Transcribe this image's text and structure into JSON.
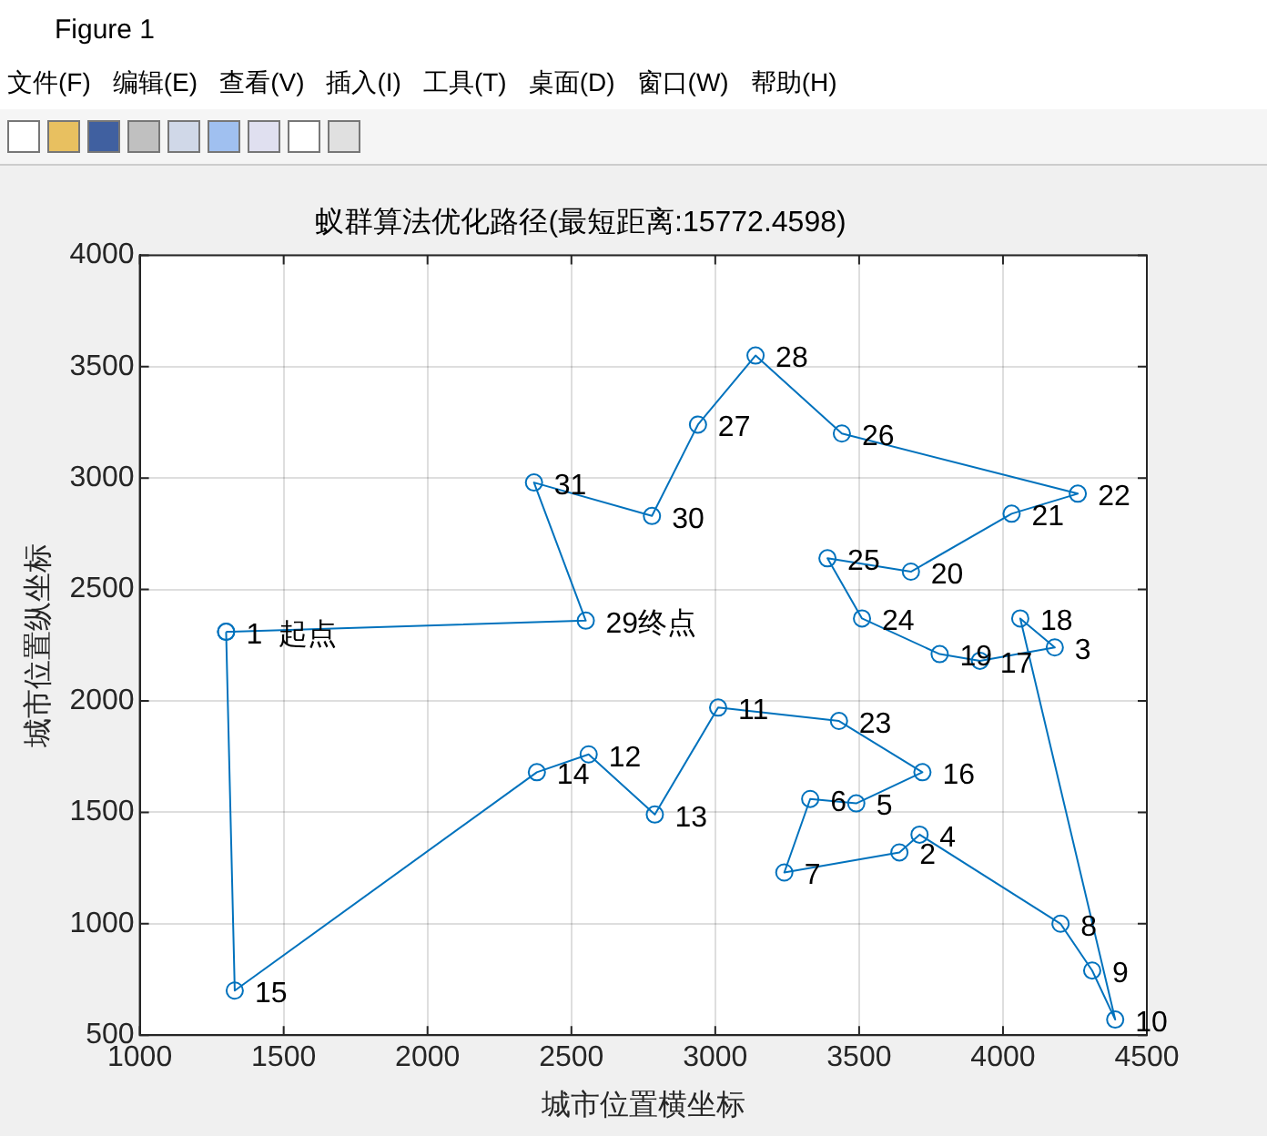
{
  "chart_data": {
    "type": "scatter",
    "title": "蚁群算法优化路径(最短距离:15772.4598)",
    "xlabel": "城市位置横坐标",
    "ylabel": "城市位置纵坐标",
    "annotations": [
      "Figure 1",
      "文件(F)",
      "编辑(E)",
      "查看(V)",
      "插入(I)",
      "工具(T)",
      "桌面(D)",
      "窗口(W)",
      "帮助(H)",
      {
        "text": "1  起点",
        "x": 1300,
        "y": 2310
      },
      {
        "text": "2",
        "x": 3640,
        "y": 1320
      },
      {
        "text": "3",
        "x": 4180,
        "y": 2240
      },
      {
        "text": "4",
        "x": 3710,
        "y": 1400
      },
      {
        "text": "5",
        "x": 3490,
        "y": 1540
      },
      {
        "text": "6",
        "x": 3330,
        "y": 1560
      },
      {
        "text": "7",
        "x": 3240,
        "y": 1230
      },
      {
        "text": "8",
        "x": 4200,
        "y": 1000
      },
      {
        "text": "9",
        "x": 4310,
        "y": 790
      },
      {
        "text": "10",
        "x": 4390,
        "y": 570
      },
      {
        "text": "11",
        "x": 3010,
        "y": 1970
      },
      {
        "text": "12",
        "x": 2560,
        "y": 1760
      },
      {
        "text": "13",
        "x": 2790,
        "y": 1490
      },
      {
        "text": "14",
        "x": 2380,
        "y": 1680
      },
      {
        "text": "15",
        "x": 1330,
        "y": 700
      },
      {
        "text": "16",
        "x": 3720,
        "y": 1680
      },
      {
        "text": "17",
        "x": 3920,
        "y": 2180
      },
      {
        "text": "18",
        "x": 4060,
        "y": 2370
      },
      {
        "text": "19",
        "x": 3780,
        "y": 2210
      },
      {
        "text": "20",
        "x": 3680,
        "y": 2580
      },
      {
        "text": "21",
        "x": 4030,
        "y": 2840
      },
      {
        "text": "22",
        "x": 4260,
        "y": 2930
      },
      {
        "text": "23",
        "x": 3430,
        "y": 1910
      },
      {
        "text": "24",
        "x": 3510,
        "y": 2370
      },
      {
        "text": "25",
        "x": 3390,
        "y": 2640
      },
      {
        "text": "26",
        "x": 3440,
        "y": 3200
      },
      {
        "text": "27",
        "x": 2940,
        "y": 3240
      },
      {
        "text": "28",
        "x": 3140,
        "y": 3550
      },
      {
        "text": "29终点",
        "x": 2550,
        "y": 2360
      },
      {
        "text": "30",
        "x": 2780,
        "y": 2830
      },
      {
        "text": "31",
        "x": 2370,
        "y": 2980
      }
    ],
    "series": [
      {
        "color": "#0072bd",
        "x": [
          1300,
          1330,
          2380,
          2560,
          2790,
          3010,
          3430,
          3720,
          3490,
          3330,
          3240,
          3640,
          3710,
          4200,
          4310,
          4390,
          4060,
          4180,
          3920,
          3780,
          3510,
          3390,
          3680,
          4030,
          4260,
          3440,
          3140,
          2940,
          2780,
          2370,
          2550,
          1300
        ],
        "values": [
          2310,
          700,
          1680,
          1760,
          1490,
          1970,
          1910,
          1680,
          1540,
          1560,
          1230,
          1320,
          1400,
          1000,
          790,
          570,
          2370,
          2240,
          2180,
          2210,
          2370,
          2640,
          2580,
          2840,
          2930,
          3200,
          3550,
          3240,
          2830,
          2980,
          2360,
          2310
        ]
      }
    ],
    "xlim": [
      1000,
      4500
    ],
    "xticks": [
      1000,
      1500,
      2000,
      2500,
      3000,
      3500,
      4000,
      4500
    ],
    "ylim": [
      500,
      4000
    ],
    "yticks": [
      500,
      1000,
      1500,
      2000,
      2500,
      3000,
      3500,
      4000
    ],
    "grid": true,
    "marker": "circle",
    "line_style": "solid"
  }
}
